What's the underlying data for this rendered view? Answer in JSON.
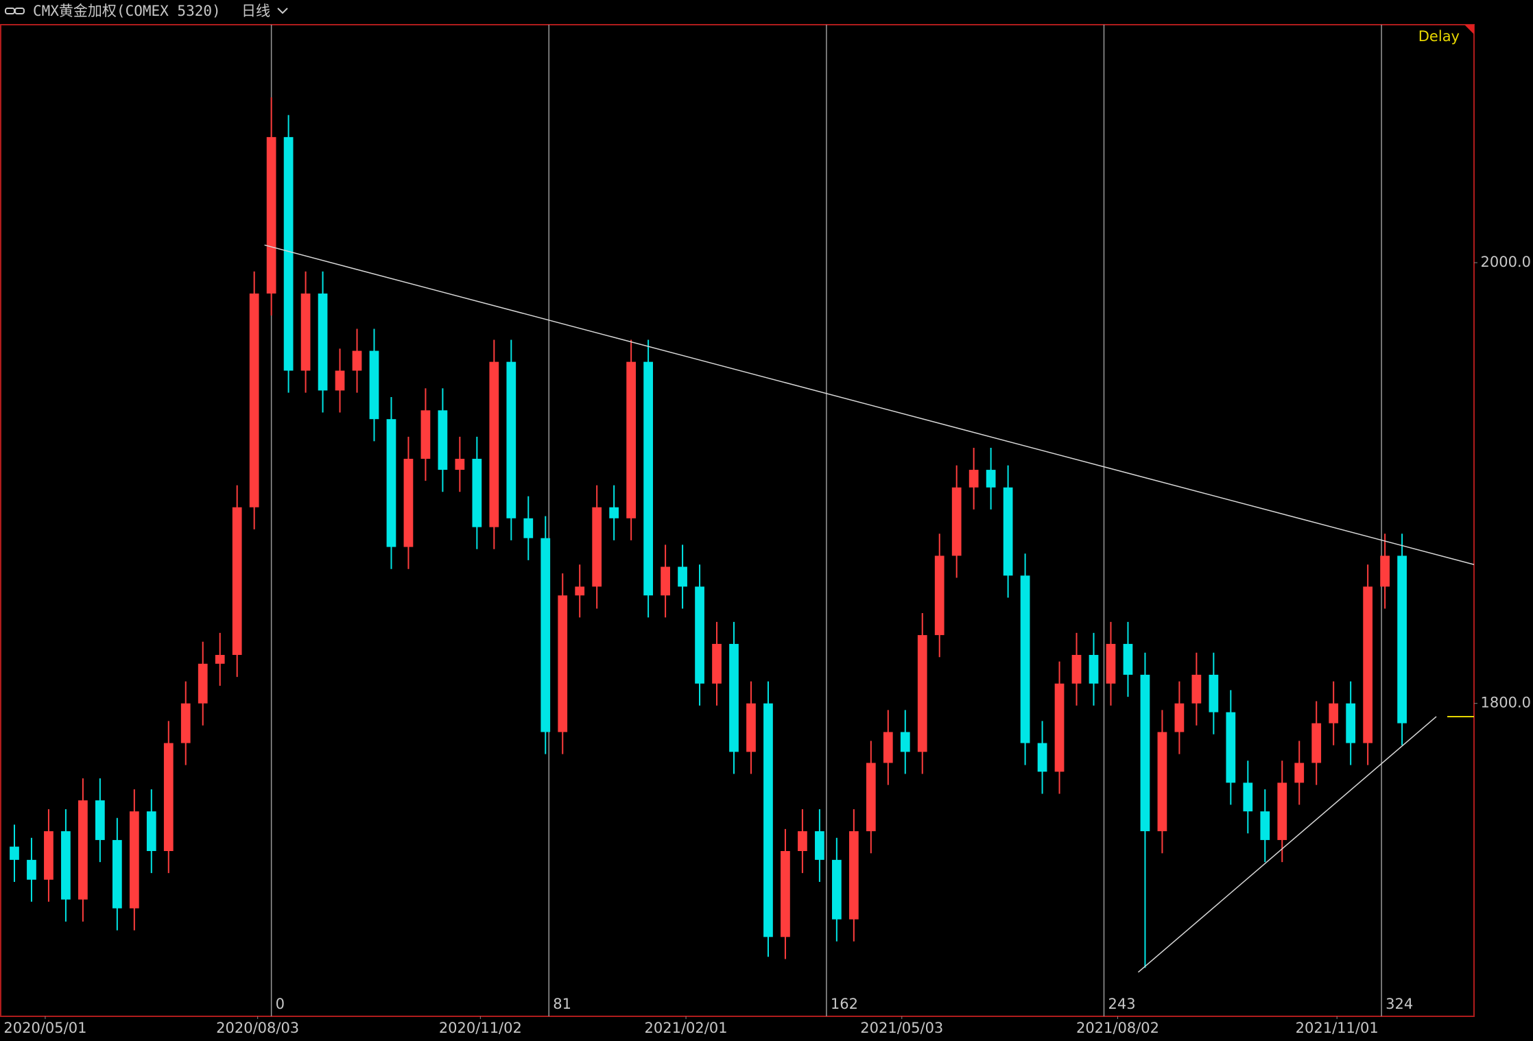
{
  "chart_data": {
    "type": "candlestick",
    "title": "CMX黄金加权(COMEX 5320)",
    "period": "日线",
    "status": "Delay",
    "x": [
      -75,
      -70,
      -65,
      -60,
      -55,
      -50,
      -45,
      -40,
      -35,
      -30,
      -25,
      -20,
      -15,
      -10,
      -5,
      0,
      5,
      10,
      15,
      20,
      25,
      30,
      35,
      40,
      45,
      50,
      55,
      60,
      65,
      70,
      75,
      80,
      85,
      90,
      95,
      100,
      105,
      110,
      115,
      120,
      125,
      130,
      135,
      140,
      145,
      150,
      155,
      160,
      165,
      170,
      175,
      180,
      185,
      190,
      195,
      200,
      205,
      210,
      215,
      220,
      225,
      230,
      235,
      240,
      245,
      250,
      255,
      260,
      265,
      270,
      275,
      280,
      285,
      290,
      295,
      300,
      305,
      310,
      315,
      320,
      325,
      330
    ],
    "open": [
      1735,
      1729,
      1720,
      1742,
      1711,
      1756,
      1738,
      1707,
      1751,
      1733,
      1782,
      1800,
      1818,
      1822,
      1889,
      1986,
      2057,
      1951,
      1986,
      1942,
      1951,
      1960,
      1929,
      1871,
      1911,
      1933,
      1906,
      1911,
      1880,
      1955,
      1884,
      1875,
      1787,
      1849,
      1853,
      1889,
      1884,
      1955,
      1849,
      1862,
      1853,
      1809,
      1827,
      1778,
      1800,
      1694,
      1733,
      1742,
      1729,
      1702,
      1742,
      1773,
      1787,
      1778,
      1831,
      1867,
      1898,
      1906,
      1898,
      1858,
      1782,
      1769,
      1809,
      1822,
      1809,
      1827,
      1813,
      1742,
      1787,
      1800,
      1813,
      1796,
      1764,
      1751,
      1738,
      1764,
      1773,
      1791,
      1800,
      1782,
      1853,
      1867
    ],
    "high": [
      1745,
      1739,
      1752,
      1752,
      1766,
      1766,
      1748,
      1761,
      1761,
      1792,
      1810,
      1828,
      1832,
      1899,
      1996,
      2075,
      2067,
      1996,
      1996,
      1961,
      1970,
      1970,
      1939,
      1921,
      1943,
      1943,
      1921,
      1921,
      1965,
      1965,
      1894,
      1885,
      1859,
      1863,
      1899,
      1899,
      1965,
      1965,
      1872,
      1872,
      1863,
      1837,
      1837,
      1810,
      1810,
      1743,
      1752,
      1752,
      1739,
      1752,
      1783,
      1797,
      1797,
      1841,
      1877,
      1908,
      1916,
      1916,
      1908,
      1868,
      1792,
      1819,
      1832,
      1832,
      1837,
      1837,
      1823,
      1797,
      1810,
      1823,
      1823,
      1806,
      1774,
      1761,
      1774,
      1783,
      1801,
      1810,
      1810,
      1863,
      1877,
      1877
    ],
    "low": [
      1719,
      1710,
      1710,
      1701,
      1701,
      1728,
      1697,
      1697,
      1723,
      1723,
      1772,
      1790,
      1808,
      1812,
      1879,
      1976,
      1941,
      1941,
      1932,
      1932,
      1941,
      1919,
      1861,
      1861,
      1901,
      1896,
      1896,
      1870,
      1870,
      1874,
      1865,
      1777,
      1777,
      1839,
      1843,
      1874,
      1874,
      1839,
      1839,
      1843,
      1799,
      1799,
      1768,
      1768,
      1685,
      1684,
      1723,
      1719,
      1692,
      1692,
      1732,
      1763,
      1768,
      1768,
      1821,
      1857,
      1888,
      1888,
      1848,
      1772,
      1759,
      1759,
      1799,
      1799,
      1799,
      1803,
      1680,
      1732,
      1777,
      1790,
      1786,
      1754,
      1741,
      1728,
      1728,
      1754,
      1763,
      1781,
      1772,
      1772,
      1843,
      1781
    ],
    "close": [
      1729,
      1720,
      1742,
      1711,
      1756,
      1738,
      1707,
      1751,
      1733,
      1782,
      1800,
      1818,
      1822,
      1889,
      1986,
      2057,
      1951,
      1986,
      1942,
      1951,
      1960,
      1929,
      1871,
      1911,
      1933,
      1906,
      1911,
      1880,
      1955,
      1884,
      1875,
      1787,
      1849,
      1853,
      1889,
      1884,
      1955,
      1849,
      1862,
      1853,
      1809,
      1827,
      1778,
      1800,
      1694,
      1733,
      1742,
      1729,
      1702,
      1742,
      1773,
      1787,
      1778,
      1831,
      1867,
      1898,
      1906,
      1898,
      1858,
      1782,
      1769,
      1809,
      1822,
      1809,
      1827,
      1813,
      1742,
      1787,
      1800,
      1813,
      1796,
      1764,
      1751,
      1738,
      1764,
      1773,
      1791,
      1800,
      1782,
      1853,
      1867,
      1791
    ],
    "up_color": "#ff3d3d",
    "down_color": "#00e6e6",
    "xlim": [
      -79,
      351
    ],
    "ylim": [
      1658,
      2108
    ],
    "yticks": [
      {
        "value": 2000,
        "label": "2000.0"
      },
      {
        "value": 1800,
        "label": "1800.0"
      }
    ],
    "xticks": [
      {
        "value": -66,
        "label": "2020/05/01"
      },
      {
        "value": -4,
        "label": "2020/08/03"
      },
      {
        "value": 61,
        "label": "2020/11/02"
      },
      {
        "value": 121,
        "label": "2021/02/01"
      },
      {
        "value": 184,
        "label": "2021/05/03"
      },
      {
        "value": 247,
        "label": "2021/08/02"
      },
      {
        "value": 311,
        "label": "2021/11/01"
      }
    ],
    "index_ticks": [
      0,
      81,
      162,
      243,
      324
    ],
    "trend_lines": [
      {
        "x": [
          -2,
          351
        ],
        "y": [
          2008,
          1863
        ]
      },
      {
        "x": [
          253,
          340
        ],
        "y": [
          1678,
          1794
        ]
      }
    ],
    "last_price": 1794
  }
}
